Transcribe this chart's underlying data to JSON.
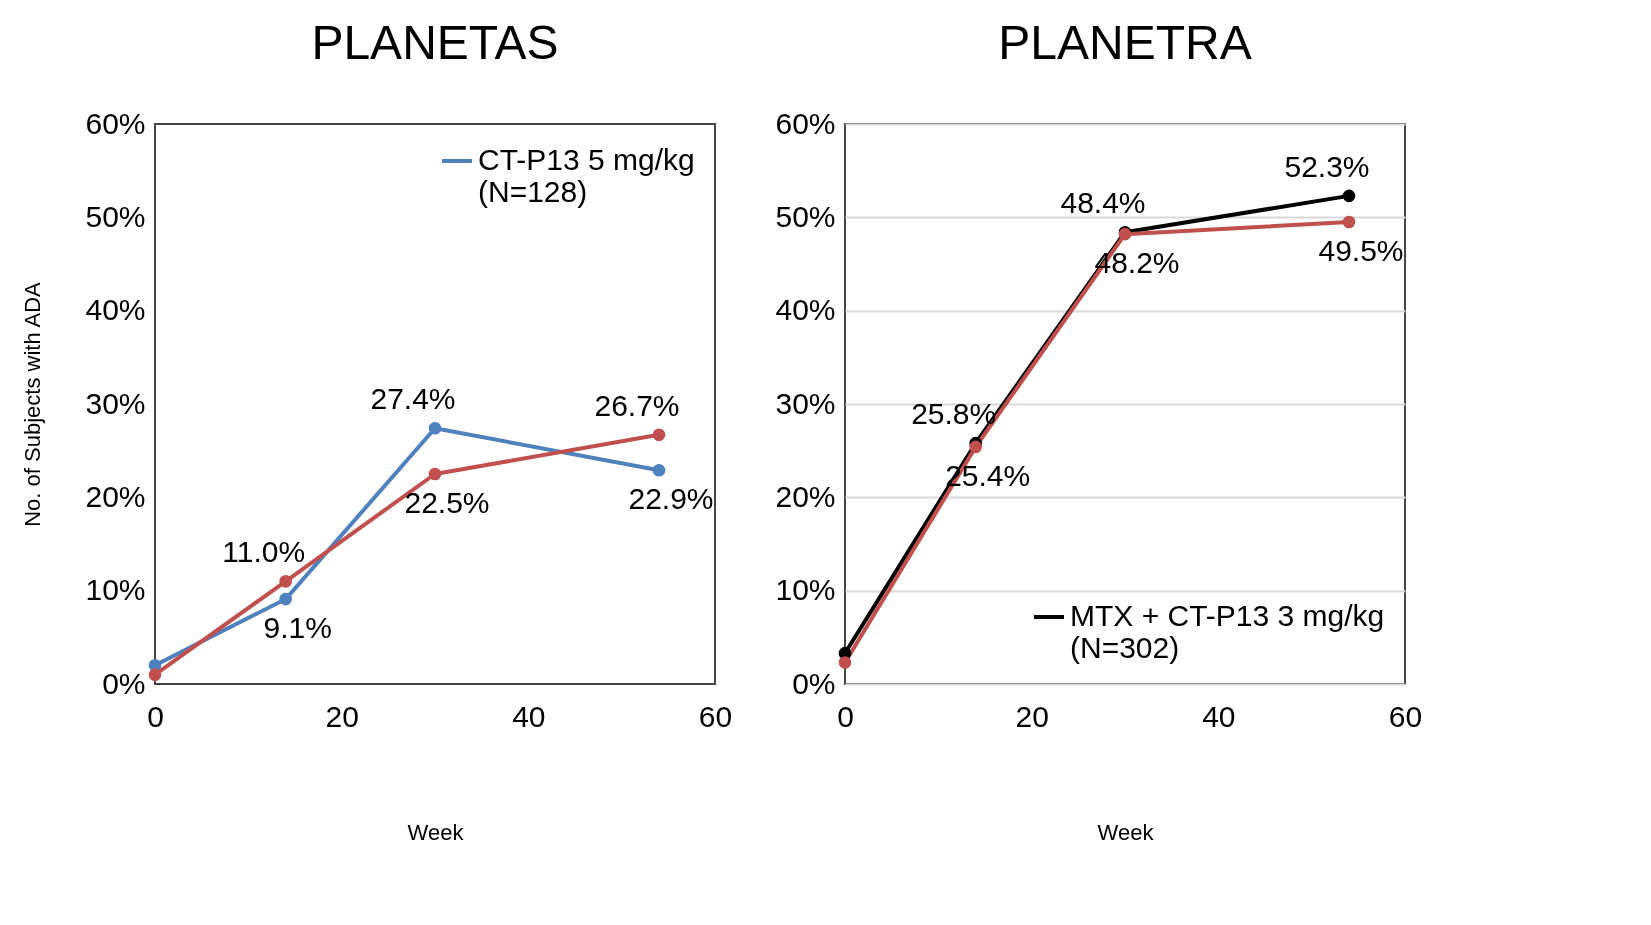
{
  "chart_data": [
    {
      "type": "line",
      "title": "PLANETAS",
      "xlabel": "Week",
      "ylabel": "No. of Subjects with ADA",
      "x": [
        0,
        14,
        30,
        54
      ],
      "xlim": [
        0,
        60
      ],
      "xticks": [
        0,
        20,
        40,
        60
      ],
      "ylim": [
        0,
        60
      ],
      "yticks": [
        {
          "value": 0,
          "label": "0%"
        },
        {
          "value": 10,
          "label": "10%"
        },
        {
          "value": 20,
          "label": "20%"
        },
        {
          "value": 30,
          "label": "30%"
        },
        {
          "value": 40,
          "label": "40%"
        },
        {
          "value": 50,
          "label": "50%"
        },
        {
          "value": 60,
          "label": "60%"
        }
      ],
      "grid": false,
      "legend": "top right",
      "marker": "circle",
      "series": [
        {
          "name": "CT-P13 5 mg/kg\n(N=128)",
          "color": "#4f81bd",
          "values": [
            2.0,
            9.1,
            27.4,
            22.9
          ],
          "value_labels": [
            null,
            "9.1%",
            "27.4%",
            "22.9%"
          ]
        },
        {
          "color": "#c0504d",
          "values": [
            1.0,
            11.0,
            22.5,
            26.7
          ],
          "value_labels": [
            null,
            "11.0%",
            "22.5%",
            "26.7%"
          ]
        }
      ]
    },
    {
      "type": "line",
      "title": "PLANETRA",
      "xlabel": "Week",
      "x": [
        0,
        14,
        30,
        54
      ],
      "xlim": [
        0,
        60
      ],
      "xticks": [
        0,
        20,
        40,
        60
      ],
      "ylim": [
        0,
        60
      ],
      "yticks": [
        {
          "value": 0,
          "label": "0%"
        },
        {
          "value": 10,
          "label": "10%"
        },
        {
          "value": 20,
          "label": "20%"
        },
        {
          "value": 30,
          "label": "30%"
        },
        {
          "value": 40,
          "label": "40%"
        },
        {
          "value": 50,
          "label": "50%"
        },
        {
          "value": 60,
          "label": "60%"
        }
      ],
      "grid": "y",
      "legend": "bottom right",
      "marker": "circle",
      "series": [
        {
          "name": "MTX + CT-P13 3 mg/kg\n(N=302)",
          "color": "#000000",
          "values": [
            3.3,
            25.8,
            48.4,
            52.3
          ],
          "value_labels": [
            null,
            "25.8%",
            "48.4%",
            "52.3%"
          ]
        },
        {
          "color": "#c0504d",
          "values": [
            2.3,
            25.4,
            48.2,
            49.5
          ],
          "value_labels": [
            null,
            "25.4%",
            "48.2%",
            "49.5%"
          ]
        }
      ]
    }
  ]
}
